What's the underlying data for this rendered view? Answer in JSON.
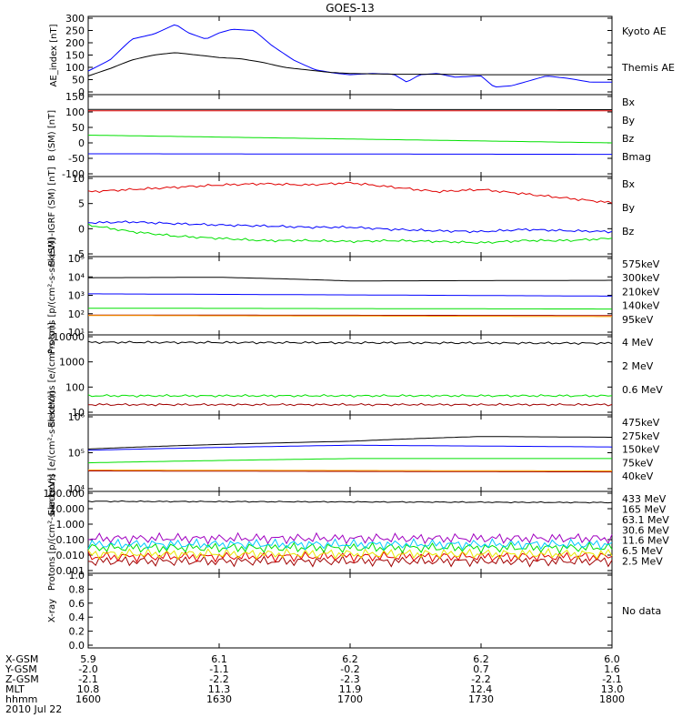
{
  "title": "GOES-13",
  "colors": {
    "black": "#000000",
    "blue": "#0000ff",
    "green": "#00e000",
    "red": "#e00000",
    "darkred": "#a00000",
    "orange": "#ffa500",
    "yellow": "#e8e800",
    "cyan": "#00c8ff",
    "purple": "#a000c0"
  },
  "chart_data": [
    {
      "type": "line",
      "ylabel": "AE_index [nT]",
      "yticks": [
        "300",
        "250",
        "200",
        "150",
        "100",
        "50",
        "0"
      ],
      "ylim": [
        0,
        300
      ],
      "series": [
        {
          "name": "Kyoto AE",
          "color": "blue",
          "x": [
            1600,
            1605,
            1610,
            1615,
            1620,
            1623,
            1627,
            1630,
            1633,
            1638,
            1642,
            1647,
            1652,
            1657,
            1700,
            1705,
            1710,
            1713,
            1716,
            1720,
            1724,
            1730,
            1733,
            1737,
            1740,
            1745,
            1750,
            1755,
            1800
          ],
          "values": [
            85,
            130,
            215,
            235,
            275,
            240,
            215,
            240,
            255,
            250,
            190,
            130,
            90,
            75,
            70,
            75,
            72,
            40,
            70,
            75,
            60,
            65,
            20,
            25,
            40,
            65,
            55,
            40,
            40
          ]
        },
        {
          "name": "Themis AE",
          "color": "black",
          "x": [
            1600,
            1605,
            1610,
            1615,
            1620,
            1625,
            1630,
            1635,
            1640,
            1645,
            1650,
            1655,
            1700,
            1710,
            1720,
            1730,
            1740,
            1750,
            1800
          ],
          "values": [
            65,
            95,
            130,
            150,
            160,
            150,
            140,
            135,
            120,
            100,
            90,
            80,
            75,
            72,
            72,
            70,
            70,
            70,
            70
          ]
        }
      ]
    },
    {
      "type": "line",
      "ylabel": "B (SM) [nT]",
      "yticks": [
        "150",
        "100",
        "50",
        "0",
        "-50",
        "-100"
      ],
      "ylim": [
        -120,
        150
      ],
      "series": [
        {
          "name": "Bx",
          "color": "blue",
          "x": [
            1600,
            1800
          ],
          "values": [
            -50,
            -52
          ]
        },
        {
          "name": "By",
          "color": "green",
          "x": [
            1600,
            1800
          ],
          "values": [
            15,
            -12
          ]
        },
        {
          "name": "Bz",
          "color": "red",
          "x": [
            1600,
            1800
          ],
          "values": [
            100,
            100
          ]
        },
        {
          "name": "Bmag",
          "color": "black",
          "x": [
            1600,
            1800
          ],
          "values": [
            105,
            104
          ]
        }
      ]
    },
    {
      "type": "line",
      "ylabel": "B (SM)-IGRF (SM) [nT]",
      "yticks": [
        "10",
        "5",
        "0",
        "-5"
      ],
      "ylim": [
        -6,
        11
      ],
      "series": [
        {
          "name": "Bx",
          "color": "blue",
          "x": [
            1600,
            1610,
            1620,
            1630,
            1640,
            1650,
            1700,
            1710,
            1720,
            1730,
            1740,
            1750,
            1800
          ],
          "values": [
            1,
            1.2,
            0.8,
            0.5,
            0.3,
            0,
            0,
            -0.5,
            -0.8,
            -1,
            -0.5,
            -0.8,
            -1
          ]
        },
        {
          "name": "By",
          "color": "green",
          "x": [
            1600,
            1610,
            1620,
            1630,
            1640,
            1650,
            1700,
            1710,
            1720,
            1730,
            1740,
            1750,
            1800
          ],
          "values": [
            0.5,
            -1,
            -2,
            -2.5,
            -3,
            -3,
            -3.2,
            -3,
            -3.2,
            -3.5,
            -3,
            -3,
            -2.5
          ]
        },
        {
          "name": "Bz",
          "color": "red",
          "x": [
            1600,
            1610,
            1620,
            1630,
            1640,
            1650,
            1700,
            1710,
            1720,
            1730,
            1740,
            1750,
            1800
          ],
          "values": [
            8,
            8.5,
            9,
            9.5,
            9.8,
            9.5,
            10,
            9,
            8,
            8.5,
            7.5,
            6.5,
            5.5
          ]
        }
      ]
    },
    {
      "type": "line",
      "ylabel": "Protons [p/(cm²-s-sr-keV)]",
      "scale": "log",
      "ylim": [
        10,
        100000
      ],
      "yticks": [
        "10⁵",
        "10⁴",
        "10³",
        "10²",
        "10¹"
      ],
      "series": [
        {
          "name": "575keV",
          "color": "darkred",
          "x": [
            1600,
            1800
          ],
          "values": [
            85,
            80
          ]
        },
        {
          "name": "300keV",
          "color": "orange",
          "x": [
            1600,
            1800
          ],
          "values": [
            80,
            70
          ]
        },
        {
          "name": "210keV",
          "color": "green",
          "x": [
            1600,
            1800
          ],
          "values": [
            200,
            180
          ]
        },
        {
          "name": "140keV",
          "color": "blue",
          "x": [
            1600,
            1800
          ],
          "values": [
            1200,
            900
          ]
        },
        {
          "name": "95keV",
          "color": "black",
          "x": [
            1600,
            1630,
            1700,
            1800
          ],
          "values": [
            9000,
            9500,
            6000,
            6500
          ]
        }
      ]
    },
    {
      "type": "line",
      "ylabel": "Electrons [e/(cm²-s-sr)]",
      "scale": "log",
      "ylim": [
        10,
        10000
      ],
      "yticks": [
        "10000",
        "1000",
        "100",
        "10"
      ],
      "series": [
        {
          "name": "4 MeV",
          "color": "darkred",
          "x": [
            1600,
            1800
          ],
          "values": [
            20,
            20
          ]
        },
        {
          "name": "2 MeV",
          "color": "green",
          "x": [
            1600,
            1800
          ],
          "values": [
            45,
            45
          ]
        },
        {
          "name": "0.6 MeV",
          "color": "black",
          "x": [
            1600,
            1800
          ],
          "values": [
            6000,
            5500
          ]
        }
      ]
    },
    {
      "type": "line",
      "ylabel": "Electrons [e/(cm²-s-sr-keV)]",
      "scale": "log",
      "ylim": [
        1000,
        1000000
      ],
      "yticks": [
        "10⁶",
        "10⁵",
        "10⁴"
      ],
      "series": [
        {
          "name": "475keV",
          "color": "darkred",
          "x": [
            1600,
            1800
          ],
          "values": [
            5500,
            5000
          ]
        },
        {
          "name": "275keV",
          "color": "orange",
          "x": [
            1600,
            1800
          ],
          "values": [
            6000,
            5500
          ]
        },
        {
          "name": "150keV",
          "color": "green",
          "x": [
            1600,
            1700,
            1800
          ],
          "values": [
            12000,
            18000,
            18000
          ]
        },
        {
          "name": "75keV",
          "color": "blue",
          "x": [
            1600,
            1700,
            1730,
            1800
          ],
          "values": [
            40000,
            65000,
            60000,
            55000
          ]
        },
        {
          "name": "40keV",
          "color": "black",
          "x": [
            1600,
            1700,
            1730,
            1800
          ],
          "values": [
            45000,
            95000,
            150000,
            140000
          ]
        }
      ]
    },
    {
      "type": "line",
      "ylabel": "Protons [p/(cm²-s-sr-keV)]",
      "scale": "log",
      "ylim": [
        0.001,
        100
      ],
      "yticks": [
        "100.000",
        "10.000",
        "1.000",
        "0.100",
        "0.010",
        "0.001"
      ],
      "series": [
        {
          "name": "433 MeV",
          "color": "darkred",
          "x": [
            1600,
            1800
          ],
          "values": [
            0.004,
            0.004
          ]
        },
        {
          "name": "165 MeV",
          "color": "red",
          "x": [
            1600,
            1800
          ],
          "values": [
            0.008,
            0.008
          ]
        },
        {
          "name": "63.1 MeV",
          "color": "yellow",
          "x": [
            1600,
            1800
          ],
          "values": [
            0.012,
            0.012
          ]
        },
        {
          "name": "30.6 MeV",
          "color": "green",
          "x": [
            1600,
            1800
          ],
          "values": [
            0.03,
            0.03
          ]
        },
        {
          "name": "11.6 MeV",
          "color": "cyan",
          "x": [
            1600,
            1800
          ],
          "values": [
            0.05,
            0.05
          ]
        },
        {
          "name": "6.5 MeV",
          "color": "purple",
          "x": [
            1600,
            1800
          ],
          "values": [
            0.12,
            0.12
          ]
        },
        {
          "name": "2.5 MeV",
          "color": "black",
          "x": [
            1600,
            1800
          ],
          "values": [
            30,
            25
          ]
        }
      ]
    },
    {
      "type": "line",
      "ylabel": "X-ray",
      "yticks": [
        "1.0",
        "0.8",
        "0.6",
        "0.4",
        "0.2",
        "0.0"
      ],
      "ylim": [
        0,
        1
      ],
      "series": [],
      "note": "No data"
    }
  ],
  "x_axis": {
    "rows": [
      {
        "label": "X-GSM",
        "values": [
          "5.9",
          "6.1",
          "6.2",
          "6.2",
          "6.0"
        ]
      },
      {
        "label": "Y-GSM",
        "values": [
          "-2.0",
          "-1.1",
          "-0.2",
          "0.7",
          "1.6"
        ]
      },
      {
        "label": "Z-GSM",
        "values": [
          "-2.1",
          "-2.2",
          "-2.3",
          "-2.2",
          "-2.1"
        ]
      },
      {
        "label": "MLT",
        "values": [
          "10.8",
          "11.3",
          "11.9",
          "12.4",
          "13.0"
        ]
      },
      {
        "label": "hhmm",
        "values": [
          "1600",
          "1630",
          "1700",
          "1730",
          "1800"
        ]
      }
    ],
    "date": "2010 Jul 22",
    "ticks": [
      1600,
      1630,
      1700,
      1730,
      1800
    ]
  }
}
